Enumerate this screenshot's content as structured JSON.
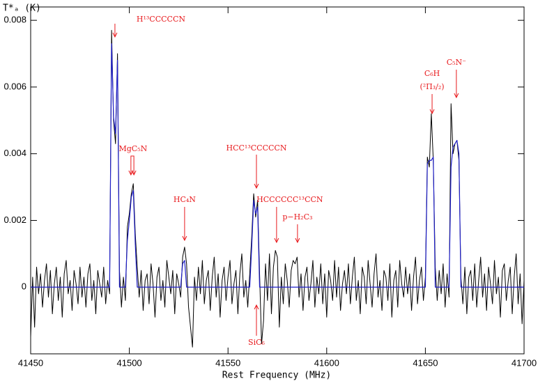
{
  "chart_data": {
    "type": "line",
    "x_label": "Rest Frequency (MHz)",
    "y_label": "T*ₐ (K)",
    "xlim": [
      41450,
      41700
    ],
    "xticks": [
      41450,
      41500,
      41550,
      41600,
      41650,
      41700
    ],
    "ylim": [
      -0.002,
      0.0084
    ],
    "yticks": [
      0,
      0.002,
      0.004,
      0.006,
      0.008
    ],
    "x": [
      41450,
      41451,
      41452,
      41453,
      41454,
      41455,
      41456,
      41457,
      41458,
      41459,
      41460,
      41461,
      41462,
      41463,
      41464,
      41465,
      41466,
      41467,
      41468,
      41469,
      41470,
      41471,
      41472,
      41473,
      41474,
      41475,
      41476,
      41477,
      41478,
      41479,
      41480,
      41481,
      41482,
      41483,
      41484,
      41485,
      41486,
      41487,
      41488,
      41489,
      41490,
      41491,
      41492,
      41493,
      41494,
      41495,
      41496,
      41497,
      41498,
      41499,
      41500,
      41501,
      41502,
      41503,
      41504,
      41505,
      41506,
      41507,
      41508,
      41509,
      41510,
      41511,
      41512,
      41513,
      41514,
      41515,
      41516,
      41517,
      41518,
      41519,
      41520,
      41521,
      41522,
      41523,
      41524,
      41525,
      41526,
      41527,
      41528,
      41529,
      41530,
      41531,
      41532,
      41533,
      41534,
      41535,
      41536,
      41537,
      41538,
      41539,
      41540,
      41541,
      41542,
      41543,
      41544,
      41545,
      41546,
      41547,
      41548,
      41549,
      41550,
      41551,
      41552,
      41553,
      41554,
      41555,
      41556,
      41557,
      41558,
      41559,
      41560,
      41561,
      41562,
      41563,
      41564,
      41565,
      41566,
      41567,
      41568,
      41569,
      41570,
      41571,
      41572,
      41573,
      41574,
      41575,
      41576,
      41577,
      41578,
      41579,
      41580,
      41581,
      41582,
      41583,
      41584,
      41585,
      41586,
      41587,
      41588,
      41589,
      41590,
      41591,
      41592,
      41593,
      41594,
      41595,
      41596,
      41597,
      41598,
      41599,
      41600,
      41601,
      41602,
      41603,
      41604,
      41605,
      41606,
      41607,
      41608,
      41609,
      41610,
      41611,
      41612,
      41613,
      41614,
      41615,
      41616,
      41617,
      41618,
      41619,
      41620,
      41621,
      41622,
      41623,
      41624,
      41625,
      41626,
      41627,
      41628,
      41629,
      41630,
      41631,
      41632,
      41633,
      41634,
      41635,
      41636,
      41637,
      41638,
      41639,
      41640,
      41641,
      41642,
      41643,
      41644,
      41645,
      41646,
      41647,
      41648,
      41649,
      41650,
      41651,
      41652,
      41653,
      41654,
      41655,
      41656,
      41657,
      41658,
      41659,
      41660,
      41661,
      41662,
      41663,
      41664,
      41665,
      41666,
      41667,
      41668,
      41669,
      41670,
      41671,
      41672,
      41673,
      41674,
      41675,
      41676,
      41677,
      41678,
      41679,
      41680,
      41681,
      41682,
      41683,
      41684,
      41685,
      41686,
      41687,
      41688,
      41689,
      41690,
      41691,
      41692,
      41693,
      41694,
      41695,
      41696,
      41697,
      41698,
      41699,
      41700
    ],
    "series": [
      {
        "color": "#000000",
        "values": [
          -0.0015,
          0.0003,
          -0.0012,
          0.0006,
          -0.0002,
          0.0004,
          -0.0006,
          0.0002,
          0.0007,
          -0.0003,
          0.0005,
          -0.0008,
          0.0001,
          0.0006,
          -0.0004,
          0.0003,
          -0.0009,
          0.0004,
          0.0008,
          -0.0002,
          0.0002,
          -0.0007,
          0.0005,
          0.0001,
          -0.0005,
          0.0006,
          -0.0003,
          0.0003,
          -0.0006,
          0.0004,
          0.0007,
          -0.0004,
          0.0002,
          -0.0008,
          0.0005,
          0.0001,
          -0.0003,
          0.0006,
          -0.0005,
          0.0002,
          -0.0002,
          0.0077,
          0.005,
          0.0043,
          0.007,
          0.0005,
          -0.0006,
          0.0003,
          -0.0004,
          0.0018,
          0.0022,
          0.0028,
          0.0031,
          0.0016,
          0.0006,
          -0.0003,
          0.0005,
          -0.0007,
          0.0002,
          0.0004,
          -0.0005,
          0.0007,
          0.0001,
          -0.0009,
          0.0003,
          0.0006,
          -0.0004,
          0.0002,
          -0.0006,
          0.0008,
          0.0003,
          -0.0002,
          0.0005,
          -0.0008,
          0.0004,
          0.0001,
          -0.0003,
          0.0009,
          0.0012,
          0.0007,
          -0.0006,
          -0.0012,
          -0.0018,
          0.0003,
          -0.0004,
          0.0006,
          -0.0002,
          0.0008,
          -0.0005,
          0.0002,
          0.0005,
          -0.0007,
          0.0003,
          0.0009,
          -0.0003,
          0.0004,
          -0.0009,
          0.0002,
          0.0006,
          -0.0004,
          0.0003,
          0.0008,
          -0.0005,
          0.0001,
          0.0005,
          -0.0008,
          0.0004,
          0.001,
          -0.0003,
          0.0002,
          -0.0006,
          0.0004,
          0.0015,
          0.0028,
          0.0021,
          0.0026,
          0.0004,
          -0.0017,
          -0.001,
          0.0007,
          -0.0004,
          0.001,
          -0.0008,
          0.0006,
          0.0011,
          0.0009,
          -0.0012,
          0.0003,
          -0.0005,
          0.0007,
          0.0002,
          -0.0006,
          0.0005,
          0.0008,
          0.0007,
          0.0009,
          -0.0003,
          0.0004,
          -0.0007,
          0.0003,
          0.0006,
          -0.0004,
          0.0001,
          0.0008,
          -0.0006,
          0.0003,
          -0.0002,
          0.0007,
          -0.0005,
          0.0004,
          -0.0009,
          0.0005,
          0.0002,
          -0.0004,
          0.0008,
          -0.0003,
          0.0006,
          -0.0007,
          0.0001,
          0.0005,
          -0.0002,
          0.0007,
          -0.0005,
          0.0003,
          0.0009,
          -0.0004,
          0.0002,
          -0.0008,
          0.0006,
          0.0003,
          -0.0005,
          0.0008,
          0.0001,
          -0.0006,
          0.0004,
          0.001,
          -0.0003,
          0.0002,
          -0.0007,
          0.0005,
          0.0003,
          -0.0004,
          0.0007,
          -0.0009,
          0.0002,
          0.0005,
          -0.0006,
          0.0008,
          0.0001,
          -0.0003,
          0.0006,
          -0.0002,
          0.0004,
          -0.0007,
          0.0003,
          0.0009,
          -0.0005,
          0.0002,
          0.0006,
          -0.0004,
          0.0003,
          0.0039,
          0.0036,
          0.0052,
          0.0038,
          0.0006,
          -0.0004,
          0.0005,
          -0.0002,
          0.0007,
          -0.0006,
          0.0004,
          -0.0003,
          0.0055,
          0.004,
          0.0043,
          0.0044,
          0.0038,
          0.0003,
          -0.0005,
          0.0006,
          -0.0008,
          0.0003,
          0.0005,
          -0.0004,
          0.0007,
          -0.0006,
          0.0002,
          0.0009,
          -0.0003,
          0.0004,
          -0.0007,
          0.0006,
          0.0001,
          -0.0005,
          0.0008,
          -0.0002,
          0.0003,
          -0.0009,
          0.0005,
          0.0007,
          -0.0004,
          0.0002,
          0.0006,
          -0.0008,
          0.0003,
          0.001,
          -0.0005,
          0.0004,
          -0.0011,
          0.0002
        ]
      },
      {
        "color": "#1f1fc8",
        "values": [
          0,
          0,
          0,
          0,
          0,
          0,
          0,
          0,
          0,
          0,
          0,
          0,
          0,
          0,
          0,
          0,
          0,
          0,
          0,
          0,
          0,
          0,
          0,
          0,
          0,
          0,
          0,
          0,
          0,
          0,
          0,
          0,
          0,
          0,
          0,
          0,
          0,
          0,
          0,
          0,
          0,
          0.0073,
          0.0051,
          0.0046,
          0.0068,
          0,
          0,
          0,
          0,
          0.0014,
          0.002,
          0.0027,
          0.0029,
          0.0013,
          0,
          0,
          0,
          0,
          0,
          0,
          0,
          0,
          0,
          0,
          0,
          0,
          0,
          0,
          0,
          0,
          0,
          0,
          0,
          0,
          0,
          0,
          0,
          0.0007,
          0.0008,
          0,
          0,
          0,
          0,
          0,
          0,
          0,
          0,
          0,
          0,
          0,
          0,
          0,
          0,
          0,
          0,
          0,
          0,
          0,
          0,
          0,
          0,
          0,
          0,
          0,
          0,
          0,
          0,
          0,
          0,
          0,
          0,
          0,
          0.0012,
          0.0026,
          0.0022,
          0.0024,
          0,
          0,
          0,
          0,
          0,
          0,
          0,
          0,
          0,
          0,
          0,
          0,
          0,
          0,
          0,
          0,
          0,
          0,
          0,
          0,
          0,
          0,
          0,
          0,
          0,
          0,
          0,
          0,
          0,
          0,
          0,
          0,
          0,
          0,
          0,
          0,
          0,
          0,
          0,
          0,
          0,
          0,
          0,
          0,
          0,
          0,
          0,
          0,
          0,
          0,
          0,
          0,
          0,
          0,
          0,
          0,
          0,
          0,
          0,
          0,
          0,
          0,
          0,
          0,
          0,
          0,
          0,
          0,
          0,
          0,
          0,
          0,
          0,
          0,
          0,
          0,
          0,
          0,
          0,
          0,
          0,
          0,
          0,
          0,
          0,
          0.0037,
          0.0038,
          0.0038,
          0.0039,
          0,
          0,
          0,
          0,
          0,
          0,
          0,
          0,
          0.0036,
          0.0042,
          0.0043,
          0.0044,
          0.004,
          0,
          0,
          0,
          0,
          0,
          0,
          0,
          0,
          0,
          0,
          0,
          0,
          0,
          0,
          0,
          0,
          0,
          0,
          0,
          0,
          0,
          0,
          0,
          0,
          0,
          0,
          0,
          0,
          0,
          0,
          0,
          0,
          0
        ]
      }
    ],
    "annotation_color": "#e8191c",
    "annotations": [
      {
        "text": [
          "H¹³CCCCCN"
        ],
        "x": [
          41492.7
        ]
      },
      {
        "text": [
          "MgC₅N"
        ],
        "x": [
          41500.8,
          41502.3
        ]
      },
      {
        "text": [
          "HC₄N"
        ],
        "x": [
          41528
        ]
      },
      {
        "text": [
          "HCC¹³CCCCCN"
        ],
        "x": [
          41564.4
        ]
      },
      {
        "text": [
          "HCCCCCC¹³CCN"
        ],
        "x": [
          41574.6
        ]
      },
      {
        "text": [
          "p−H₂C₃"
        ],
        "x": [
          41585.2
        ]
      },
      {
        "text": [
          "SiC₆"
        ],
        "x": [
          41564.4
        ]
      },
      {
        "text": [
          "C₆H",
          "(²Π₃/₂)"
        ],
        "x": [
          41653.4
        ]
      },
      {
        "text": [
          "C₅N⁻"
        ],
        "x": [
          41665.7
        ]
      }
    ]
  }
}
